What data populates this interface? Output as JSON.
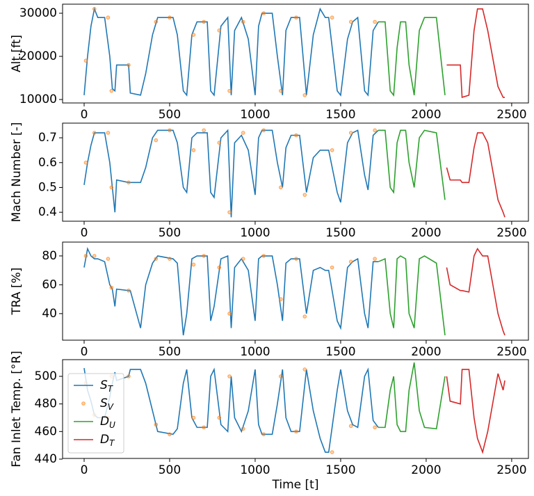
{
  "chart_data": [
    {
      "type": "line",
      "ylabel": "Alt.[ft]",
      "xlim": [
        -126,
        2598
      ],
      "ylim": [
        9200,
        32100
      ],
      "xticks": [
        0,
        500,
        1000,
        1500,
        2000,
        2500
      ],
      "yticks": [
        10000,
        20000,
        30000
      ],
      "series": [
        {
          "color": "#1f77b4",
          "x": [
            0,
            20,
            40,
            60,
            80,
            120,
            150,
            165,
            180,
            190,
            260,
            270,
            330,
            360,
            400,
            430,
            520,
            545,
            580,
            600,
            630,
            660,
            720,
            740,
            760,
            800,
            840,
            860,
            880,
            920,
            960,
            1000,
            1020,
            1040,
            1100,
            1130,
            1160,
            1180,
            1210,
            1260,
            1300,
            1340,
            1380,
            1410,
            1430,
            1480,
            1500,
            1540,
            1570,
            1600,
            1640,
            1660,
            1690,
            1720
          ],
          "values": [
            11000,
            20000,
            27000,
            31000,
            29000,
            29000,
            20000,
            12500,
            12000,
            18000,
            18000,
            11500,
            11000,
            16000,
            25000,
            29000,
            29000,
            25000,
            12000,
            11000,
            25000,
            28000,
            28000,
            12000,
            11000,
            27000,
            29000,
            11000,
            26000,
            29000,
            24000,
            11000,
            27000,
            30000,
            30000,
            20000,
            11000,
            26000,
            29000,
            29000,
            11000,
            25000,
            31000,
            29000,
            29000,
            12000,
            11000,
            24000,
            28000,
            29000,
            12000,
            11000,
            26000,
            28000
          ]
        },
        {
          "type": "scatter",
          "color": "#ff7f0e",
          "x": [
            10,
            60,
            140,
            160,
            260,
            420,
            500,
            640,
            700,
            790,
            850,
            930,
            1050,
            1150,
            1240,
            1290,
            1450,
            1560,
            1700
          ],
          "values": [
            19000,
            31000,
            29000,
            12000,
            18000,
            28000,
            29000,
            25000,
            28000,
            26000,
            12000,
            28000,
            30000,
            12000,
            29000,
            11000,
            29000,
            28000,
            28000
          ]
        },
        {
          "color": "#2ca02c",
          "x": [
            1720,
            1760,
            1790,
            1810,
            1830,
            1850,
            1880,
            1900,
            1930,
            1960,
            1990,
            2060,
            2110
          ],
          "values": [
            28000,
            28000,
            12000,
            11000,
            22000,
            28000,
            28000,
            18000,
            11000,
            26000,
            29000,
            29000,
            11000
          ]
        },
        {
          "color": "#d62728",
          "x": [
            2120,
            2140,
            2200,
            2210,
            2250,
            2280,
            2300,
            2330,
            2360,
            2420,
            2450,
            2460
          ],
          "values": [
            18000,
            18000,
            18000,
            10500,
            11000,
            26000,
            31000,
            31000,
            26000,
            13000,
            10500,
            10500
          ]
        }
      ]
    },
    {
      "type": "line",
      "ylabel": "Mach Number [-]",
      "xlim": [
        -126,
        2598
      ],
      "ylim": [
        0.364,
        0.759
      ],
      "xticks": [
        0,
        500,
        1000,
        1500,
        2000,
        2500
      ],
      "yticks": [
        0.4,
        0.5,
        0.6,
        0.7
      ],
      "series": [
        {
          "color": "#1f77b4",
          "x": [
            0,
            20,
            40,
            60,
            80,
            120,
            150,
            165,
            180,
            190,
            260,
            270,
            330,
            360,
            400,
            430,
            520,
            545,
            580,
            600,
            630,
            660,
            720,
            740,
            760,
            800,
            840,
            860,
            880,
            920,
            960,
            1000,
            1020,
            1040,
            1100,
            1130,
            1160,
            1180,
            1210,
            1260,
            1300,
            1340,
            1380,
            1410,
            1430,
            1480,
            1500,
            1540,
            1570,
            1600,
            1640,
            1660,
            1690,
            1720
          ],
          "values": [
            0.51,
            0.6,
            0.67,
            0.72,
            0.72,
            0.72,
            0.6,
            0.5,
            0.4,
            0.53,
            0.52,
            0.52,
            0.52,
            0.58,
            0.7,
            0.73,
            0.73,
            0.68,
            0.5,
            0.48,
            0.7,
            0.72,
            0.72,
            0.48,
            0.46,
            0.7,
            0.73,
            0.38,
            0.68,
            0.71,
            0.65,
            0.47,
            0.7,
            0.73,
            0.73,
            0.6,
            0.5,
            0.66,
            0.71,
            0.71,
            0.48,
            0.62,
            0.65,
            0.65,
            0.65,
            0.48,
            0.44,
            0.68,
            0.72,
            0.73,
            0.55,
            0.49,
            0.71,
            0.73
          ]
        },
        {
          "type": "scatter",
          "color": "#ff7f0e",
          "x": [
            10,
            60,
            140,
            160,
            260,
            420,
            500,
            640,
            700,
            790,
            850,
            930,
            1050,
            1150,
            1240,
            1290,
            1450,
            1560,
            1700
          ],
          "values": [
            0.6,
            0.72,
            0.72,
            0.5,
            0.52,
            0.69,
            0.73,
            0.65,
            0.73,
            0.68,
            0.4,
            0.72,
            0.73,
            0.5,
            0.71,
            0.47,
            0.65,
            0.72,
            0.73
          ]
        },
        {
          "color": "#2ca02c",
          "x": [
            1720,
            1760,
            1790,
            1810,
            1830,
            1850,
            1880,
            1900,
            1930,
            1960,
            1990,
            2060,
            2110
          ],
          "values": [
            0.73,
            0.73,
            0.5,
            0.48,
            0.68,
            0.73,
            0.73,
            0.6,
            0.5,
            0.7,
            0.73,
            0.72,
            0.45
          ]
        },
        {
          "color": "#d62728",
          "x": [
            2120,
            2140,
            2200,
            2210,
            2250,
            2280,
            2300,
            2330,
            2360,
            2420,
            2450,
            2460
          ],
          "values": [
            0.58,
            0.53,
            0.53,
            0.52,
            0.52,
            0.66,
            0.72,
            0.72,
            0.68,
            0.45,
            0.4,
            0.38
          ]
        }
      ]
    },
    {
      "type": "line",
      "ylabel": "TRA [%]",
      "xlim": [
        -126,
        2598
      ],
      "ylim": [
        21.6,
        89.6
      ],
      "xticks": [
        0,
        500,
        1000,
        1500,
        2000,
        2500
      ],
      "yticks": [
        40,
        60,
        80
      ],
      "series": [
        {
          "color": "#1f77b4",
          "x": [
            0,
            20,
            40,
            60,
            80,
            120,
            150,
            165,
            180,
            190,
            260,
            270,
            330,
            360,
            400,
            430,
            520,
            545,
            580,
            600,
            630,
            660,
            720,
            740,
            760,
            800,
            840,
            860,
            880,
            920,
            960,
            1000,
            1020,
            1040,
            1100,
            1130,
            1160,
            1180,
            1210,
            1260,
            1300,
            1340,
            1380,
            1410,
            1430,
            1480,
            1500,
            1540,
            1570,
            1600,
            1640,
            1660,
            1690,
            1720
          ],
          "values": [
            72,
            85,
            80,
            78,
            78,
            76,
            60,
            57,
            45,
            57,
            56,
            56,
            30,
            60,
            75,
            80,
            78,
            75,
            25,
            40,
            78,
            80,
            80,
            35,
            45,
            78,
            80,
            30,
            72,
            78,
            70,
            35,
            78,
            80,
            80,
            60,
            35,
            75,
            78,
            78,
            40,
            70,
            72,
            70,
            70,
            35,
            30,
            72,
            76,
            78,
            40,
            30,
            76,
            76
          ]
        },
        {
          "type": "scatter",
          "color": "#ff7f0e",
          "x": [
            10,
            60,
            140,
            160,
            260,
            420,
            500,
            640,
            700,
            790,
            850,
            930,
            1050,
            1150,
            1240,
            1290,
            1450,
            1560,
            1700
          ],
          "values": [
            80,
            80,
            78,
            58,
            56,
            78,
            78,
            74,
            80,
            72,
            40,
            78,
            80,
            50,
            78,
            38,
            72,
            76,
            78
          ]
        },
        {
          "color": "#2ca02c",
          "x": [
            1720,
            1760,
            1790,
            1810,
            1830,
            1850,
            1880,
            1900,
            1930,
            1960,
            1990,
            2060,
            2110
          ],
          "values": [
            76,
            78,
            40,
            30,
            78,
            80,
            78,
            40,
            30,
            78,
            80,
            75,
            25
          ]
        },
        {
          "color": "#d62728",
          "x": [
            2120,
            2140,
            2200,
            2210,
            2250,
            2280,
            2300,
            2330,
            2360,
            2420,
            2450,
            2460
          ],
          "values": [
            72,
            60,
            56,
            56,
            55,
            80,
            85,
            80,
            80,
            40,
            28,
            25
          ]
        }
      ]
    },
    {
      "type": "line",
      "ylabel": "Fan Inlet Temp. [°R]",
      "xlabel": "Time [t]",
      "xlim": [
        -126,
        2598
      ],
      "ylim": [
        440.5,
        512.1
      ],
      "xticks": [
        0,
        500,
        1000,
        1500,
        2000,
        2500
      ],
      "yticks": [
        440,
        460,
        480,
        500
      ],
      "legend": "upper left",
      "series": [
        {
          "name": "ST",
          "color": "#1f77b4",
          "x": [
            0,
            20,
            40,
            60,
            80,
            120,
            150,
            165,
            180,
            190,
            260,
            270,
            330,
            360,
            400,
            430,
            520,
            545,
            580,
            600,
            630,
            660,
            720,
            740,
            760,
            800,
            840,
            860,
            880,
            920,
            960,
            1000,
            1020,
            1040,
            1100,
            1130,
            1160,
            1180,
            1210,
            1260,
            1300,
            1340,
            1380,
            1410,
            1430,
            1480,
            1500,
            1540,
            1570,
            1600,
            1640,
            1660,
            1690,
            1720
          ],
          "values": [
            506,
            490,
            482,
            472,
            470,
            470,
            485,
            495,
            503,
            497,
            500,
            505,
            505,
            495,
            475,
            460,
            458,
            462,
            495,
            505,
            470,
            463,
            463,
            500,
            505,
            465,
            460,
            500,
            470,
            460,
            475,
            505,
            465,
            458,
            458,
            480,
            505,
            470,
            460,
            460,
            505,
            475,
            455,
            445,
            445,
            490,
            505,
            475,
            465,
            463,
            500,
            505,
            468,
            463
          ]
        },
        {
          "name": "SV",
          "type": "scatter",
          "color": "#ff7f0e",
          "x": [
            10,
            60,
            140,
            160,
            260,
            420,
            500,
            640,
            700,
            790,
            850,
            930,
            1050,
            1150,
            1240,
            1290,
            1450,
            1560,
            1700
          ],
          "values": [
            495,
            472,
            470,
            500,
            500,
            465,
            458,
            470,
            463,
            470,
            500,
            462,
            458,
            500,
            460,
            505,
            445,
            464,
            463
          ]
        },
        {
          "name": "DU",
          "color": "#2ca02c",
          "x": [
            1720,
            1760,
            1790,
            1810,
            1830,
            1850,
            1880,
            1900,
            1930,
            1960,
            1990,
            2060,
            2110
          ],
          "values": [
            463,
            463,
            490,
            500,
            465,
            460,
            460,
            490,
            510,
            475,
            463,
            462,
            500
          ]
        },
        {
          "name": "DT",
          "color": "#d62728",
          "x": [
            2120,
            2140,
            2200,
            2210,
            2250,
            2280,
            2300,
            2330,
            2360,
            2420,
            2450,
            2460
          ],
          "values": [
            500,
            482,
            480,
            505,
            505,
            470,
            455,
            445,
            460,
            502,
            490,
            497
          ]
        }
      ]
    }
  ]
}
